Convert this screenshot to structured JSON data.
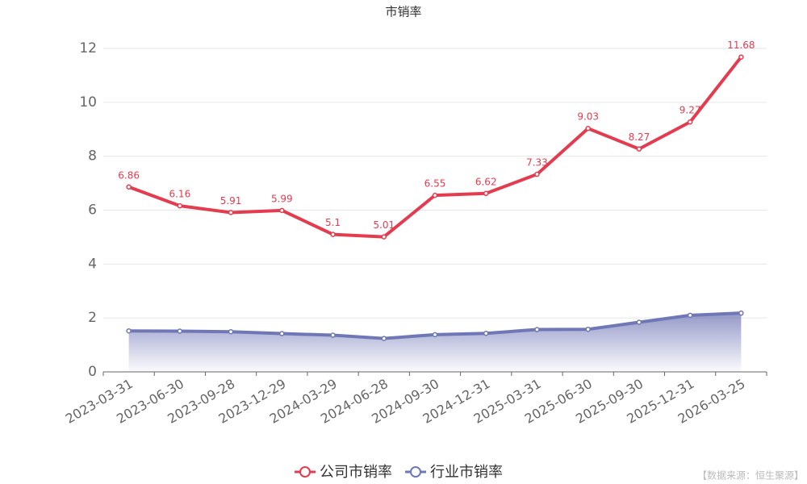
{
  "chart_data": {
    "type": "line",
    "title": "市销率",
    "categories": [
      "2023-03-31",
      "2023-06-30",
      "2023-09-28",
      "2023-12-29",
      "2024-03-29",
      "2024-06-28",
      "2024-09-30",
      "2024-12-31",
      "2025-03-31",
      "2025-06-30",
      "2025-09-30",
      "2025-12-31",
      "2026-03-25"
    ],
    "series": [
      {
        "name": "公司市销率",
        "color": "#e43c4e",
        "values": [
          6.86,
          6.16,
          5.91,
          5.99,
          5.1,
          5.01,
          6.55,
          6.62,
          7.33,
          9.03,
          8.27,
          9.27,
          11.68
        ],
        "show_labels": true
      },
      {
        "name": "行业市销率",
        "color": "#7077b6",
        "values": [
          1.52,
          1.51,
          1.49,
          1.42,
          1.36,
          1.24,
          1.38,
          1.43,
          1.57,
          1.58,
          1.84,
          2.1,
          2.18
        ],
        "area": true
      }
    ],
    "ylim": [
      0,
      12
    ],
    "yticks": [
      0,
      2,
      4,
      6,
      8,
      10,
      12
    ],
    "grid": true,
    "source": "【数据来源：恒生聚源】"
  }
}
